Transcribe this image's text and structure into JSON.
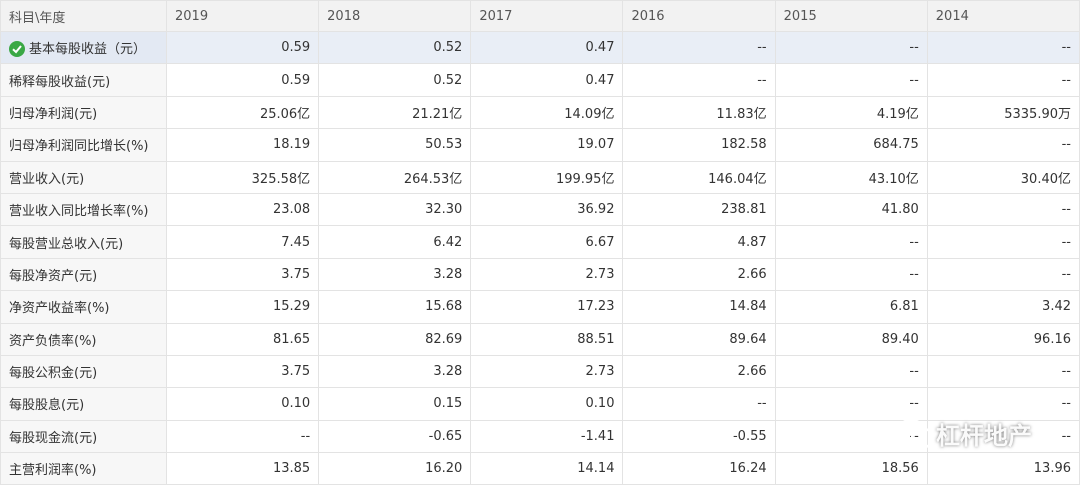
{
  "table": {
    "header": [
      "科目\\年度",
      "2019",
      "2018",
      "2017",
      "2016",
      "2015",
      "2014"
    ],
    "rows": [
      [
        "基本每股收益（元）",
        "0.59",
        "0.52",
        "0.47",
        "--",
        "--",
        "--"
      ],
      [
        "稀释每股收益(元)",
        "0.59",
        "0.52",
        "0.47",
        "--",
        "--",
        "--"
      ],
      [
        "归母净利润(元)",
        "25.06亿",
        "21.21亿",
        "14.09亿",
        "11.83亿",
        "4.19亿",
        "5335.90万"
      ],
      [
        "归母净利润同比增长(%)",
        "18.19",
        "50.53",
        "19.07",
        "182.58",
        "684.75",
        "--"
      ],
      [
        "营业收入(元)",
        "325.58亿",
        "264.53亿",
        "199.95亿",
        "146.04亿",
        "43.10亿",
        "30.40亿"
      ],
      [
        "营业收入同比增长率(%)",
        "23.08",
        "32.30",
        "36.92",
        "238.81",
        "41.80",
        "--"
      ],
      [
        "每股营业总收入(元)",
        "7.45",
        "6.42",
        "6.67",
        "4.87",
        "--",
        "--"
      ],
      [
        "每股净资产(元)",
        "3.75",
        "3.28",
        "2.73",
        "2.66",
        "--",
        "--"
      ],
      [
        "净资产收益率(%)",
        "15.29",
        "15.68",
        "17.23",
        "14.84",
        "6.81",
        "3.42"
      ],
      [
        "资产负债率(%)",
        "81.65",
        "82.69",
        "88.51",
        "89.64",
        "89.40",
        "96.16"
      ],
      [
        "每股公积金(元)",
        "3.75",
        "3.28",
        "2.73",
        "2.66",
        "--",
        "--"
      ],
      [
        "每股股息(元)",
        "0.10",
        "0.15",
        "0.10",
        "--",
        "--",
        "--"
      ],
      [
        "每股现金流(元)",
        "--",
        "-0.65",
        "-1.41",
        "-0.55",
        "--",
        "--"
      ],
      [
        "主营利润率(%)",
        "13.85",
        "16.20",
        "14.14",
        "16.24",
        "18.56",
        "13.96"
      ]
    ]
  },
  "watermark": "杠杆地产"
}
